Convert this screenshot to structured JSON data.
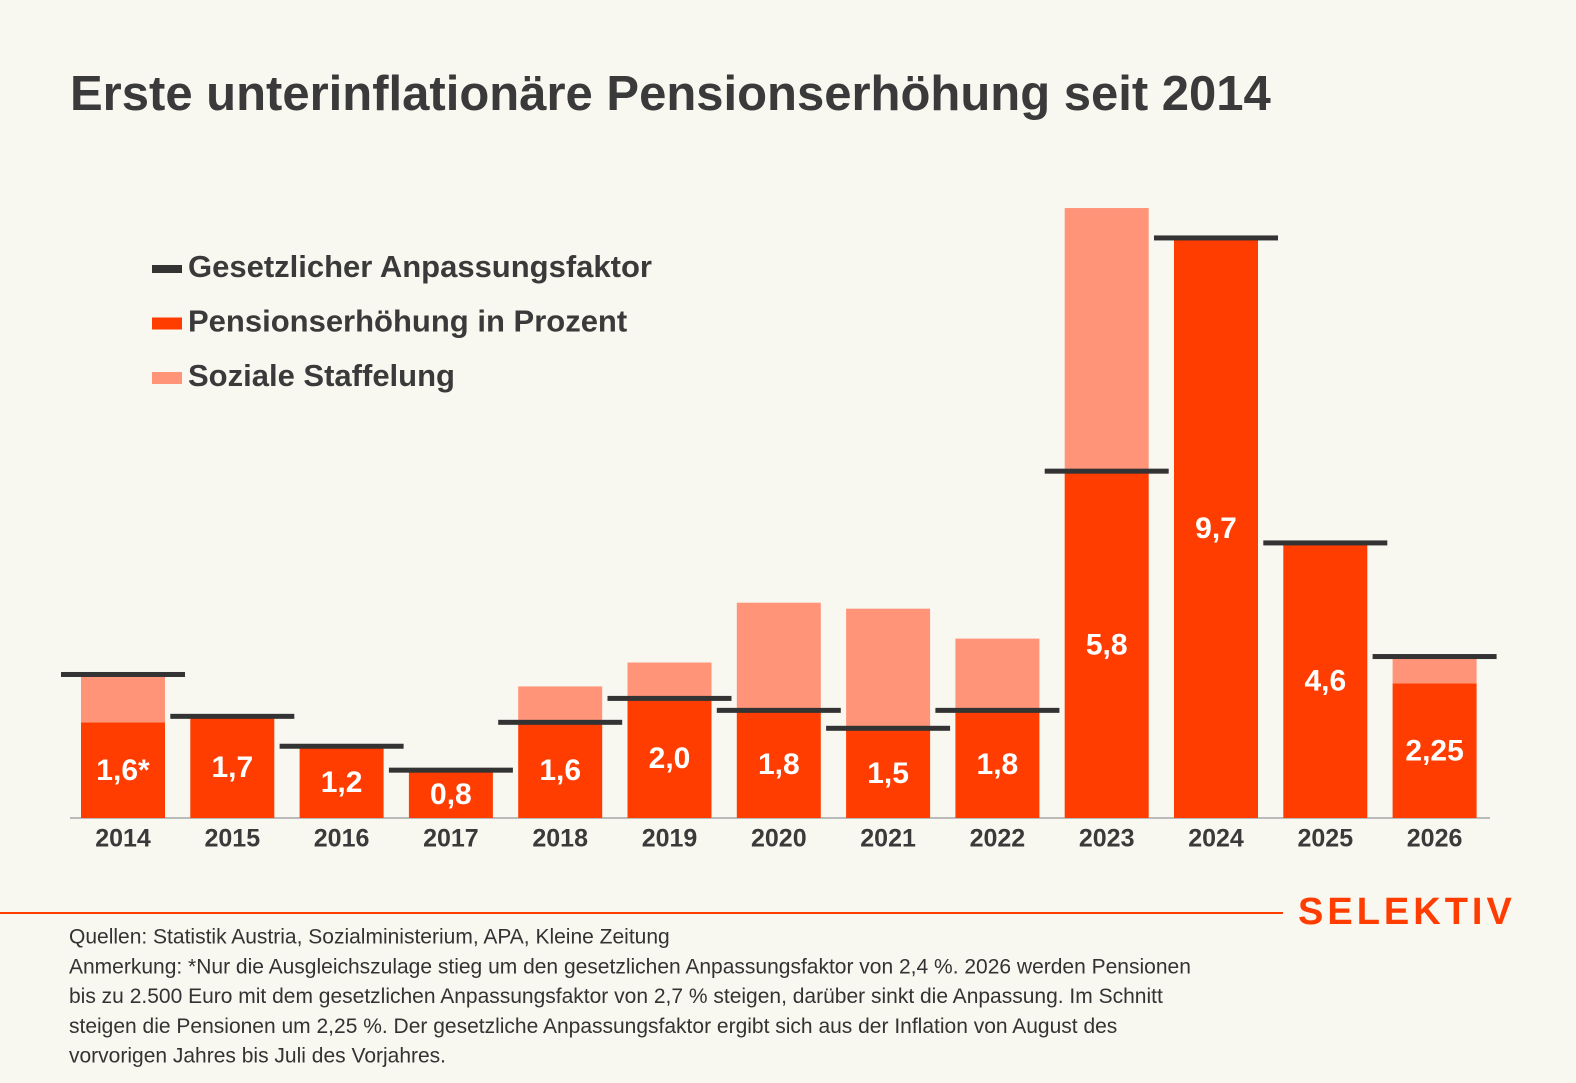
{
  "chart_data": {
    "type": "bar",
    "title": "Erste unterinflationäre Pensionserhöhung seit 2014",
    "categories": [
      "2014",
      "2015",
      "2016",
      "2017",
      "2018",
      "2019",
      "2020",
      "2021",
      "2022",
      "2023",
      "2024",
      "2025",
      "2026"
    ],
    "series": [
      {
        "name": "Gesetzlicher Anpassungsfaktor",
        "color": "#333333",
        "style": "marker",
        "values": [
          2.4,
          1.7,
          1.2,
          0.8,
          1.6,
          2.0,
          1.8,
          1.5,
          1.8,
          5.8,
          9.7,
          4.6,
          2.7
        ]
      },
      {
        "name": "Pensionserhöhung in Prozent",
        "color": "#ff3d00",
        "values": [
          1.6,
          1.7,
          1.2,
          0.8,
          1.6,
          2.0,
          1.8,
          1.5,
          1.8,
          5.8,
          9.7,
          4.6,
          2.25
        ],
        "value_labels": [
          "1,6*",
          "1,7",
          "1,2",
          "0,8",
          "1,6",
          "2,0",
          "1,8",
          "1,5",
          "1,8",
          "5,8",
          "9,7",
          "4,6",
          "2,25"
        ]
      },
      {
        "name": "Soziale Staffelung",
        "color": "#ff9478",
        "stacked": true,
        "values": [
          0.8,
          null,
          null,
          null,
          0.6,
          0.6,
          1.8,
          2.0,
          1.2,
          4.4,
          null,
          null,
          0.45
        ]
      }
    ]
  },
  "footer": {
    "logo": "SELEKTIV",
    "lines": [
      "Quellen: Statistik Austria, Sozialministerium, APA, Kleine Zeitung",
      "Anmerkung: *Nur die Ausgleichszulage stieg um den gesetzlichen Anpassungsfaktor von 2,4 %. 2026 werden Pensionen",
      "bis zu 2.500 Euro mit dem gesetzlichen Anpassungsfaktor von 2,7 % steigen, darüber sinkt die Anpassung. Im Schnitt",
      "steigen die Pensionen um 2,25 %. Der gesetzliche Anpassungsfaktor ergibt sich aus der Inflation von August des",
      "vorvorigen Jahres bis Juli des Vorjahres."
    ]
  }
}
